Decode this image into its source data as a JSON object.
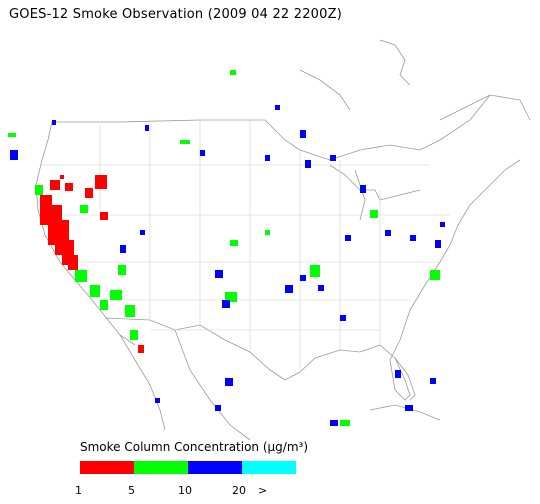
{
  "title": "GOES-12 Smoke Observation (2009 04 22  2200Z)",
  "legend": {
    "title": "Smoke Column Concentration (µg/m³)",
    "ticks": [
      "1",
      "5",
      "10",
      "20",
      ">"
    ],
    "colors": [
      "#ff0000",
      "#00ff00",
      "#0000ff",
      "#00ffff"
    ]
  },
  "map": {
    "region": "Contiguous United States",
    "smoke_colors": {
      "low": "#ff0000",
      "mid": "#00ff00",
      "high": "#0000ff"
    }
  }
}
